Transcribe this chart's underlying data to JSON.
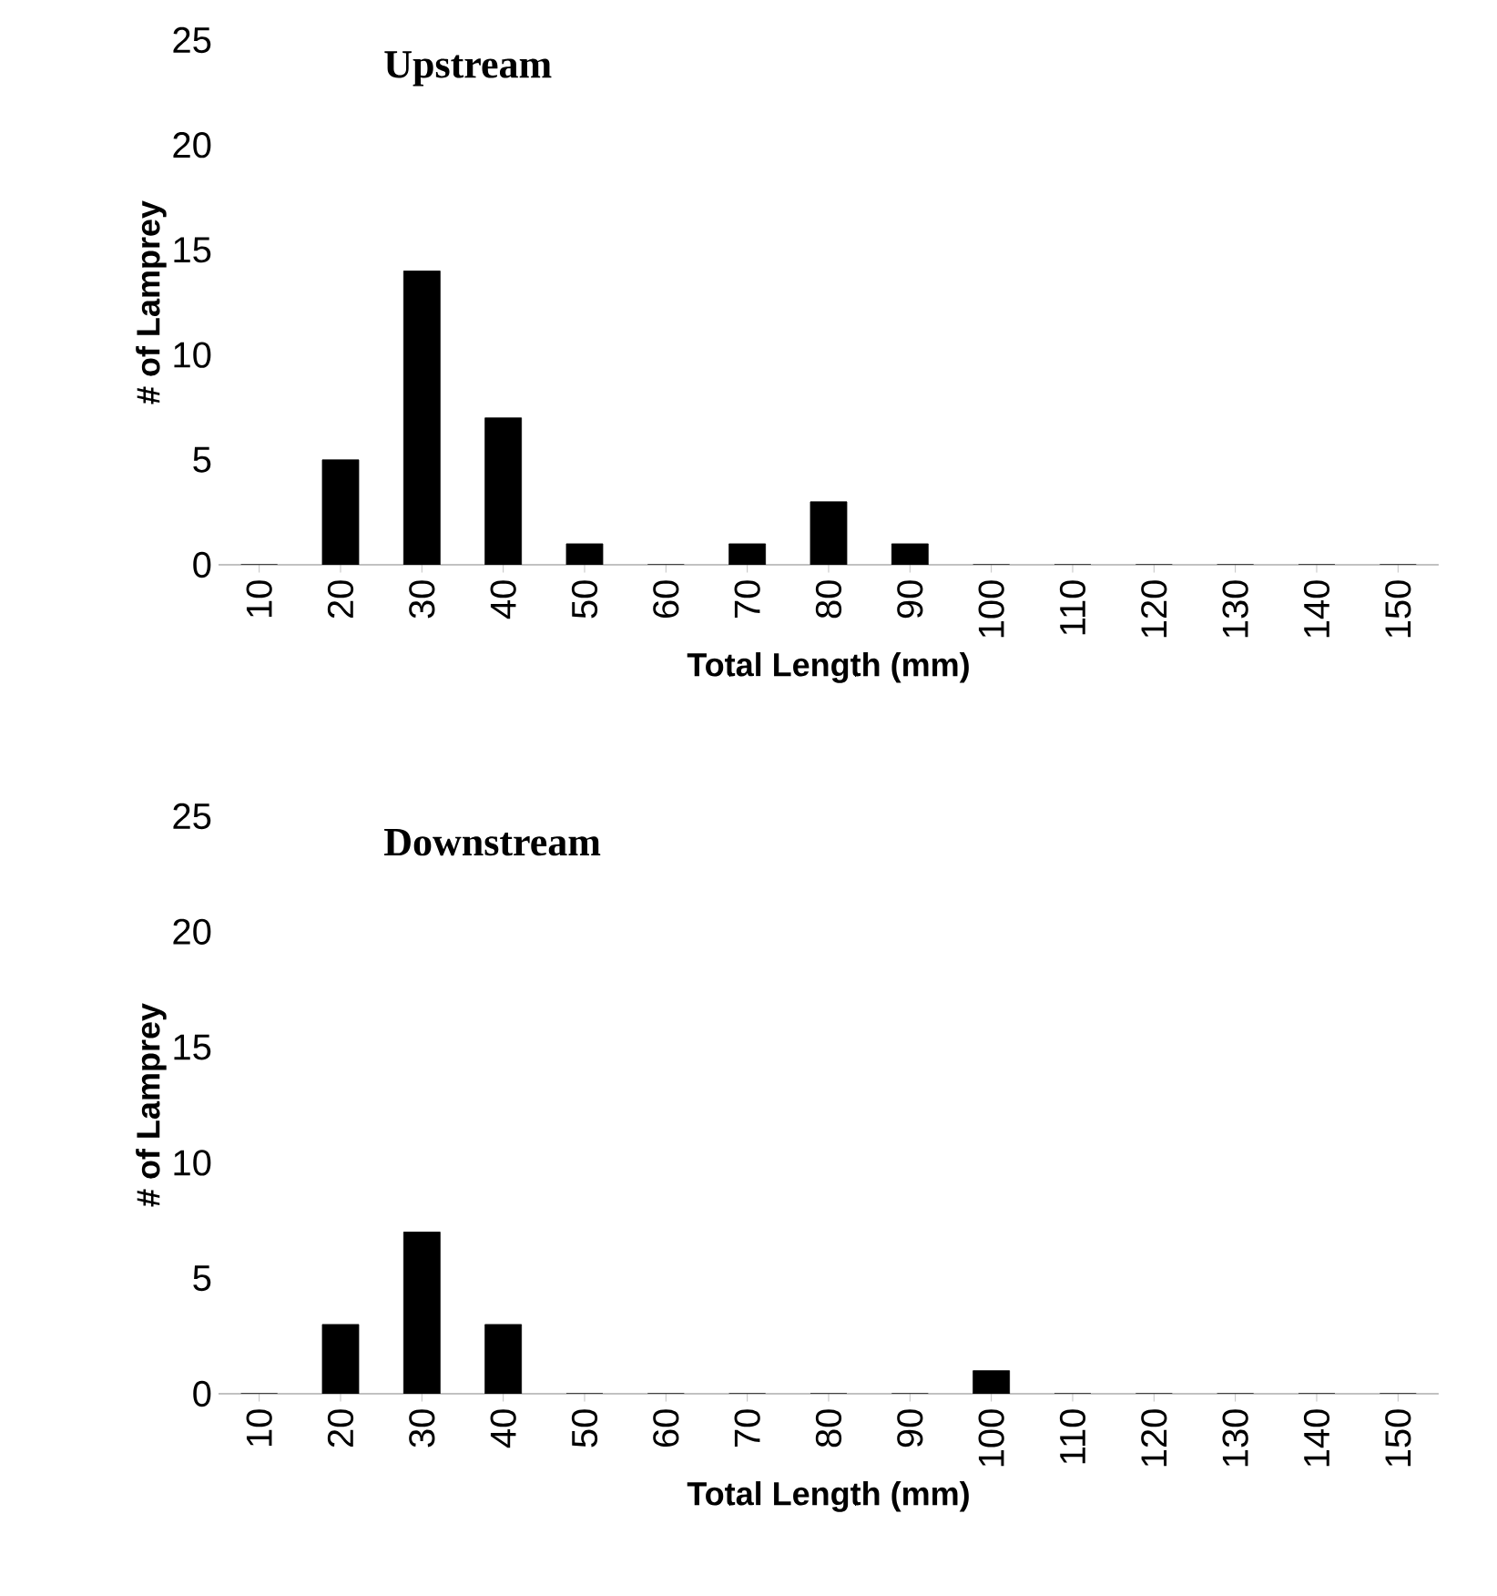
{
  "chart_data": [
    {
      "type": "bar",
      "title": "Upstream",
      "xlabel": "Total Length (mm)",
      "ylabel": "# of Lamprey",
      "categories": [
        "10",
        "20",
        "30",
        "40",
        "50",
        "60",
        "70",
        "80",
        "90",
        "100",
        "110",
        "120",
        "130",
        "140",
        "150"
      ],
      "values": [
        0,
        5,
        14,
        7,
        1,
        0,
        1,
        3,
        1,
        0,
        0,
        0,
        0,
        0,
        0
      ],
      "color": "#000000",
      "ylim": [
        0,
        25
      ],
      "yticks": [
        0,
        5,
        10,
        15,
        20,
        25
      ]
    },
    {
      "type": "bar",
      "title": "Downstream",
      "xlabel": "Total Length (mm)",
      "ylabel": "# of Lamprey",
      "categories": [
        "10",
        "20",
        "30",
        "40",
        "50",
        "60",
        "70",
        "80",
        "90",
        "100",
        "110",
        "120",
        "130",
        "140",
        "150"
      ],
      "values": [
        0,
        3,
        7,
        3,
        0,
        0,
        0,
        0,
        0,
        1,
        0,
        0,
        0,
        0,
        0
      ],
      "color": "#000000",
      "ylim": [
        0,
        25
      ],
      "yticks": [
        0,
        5,
        10,
        15,
        20,
        25
      ]
    }
  ]
}
